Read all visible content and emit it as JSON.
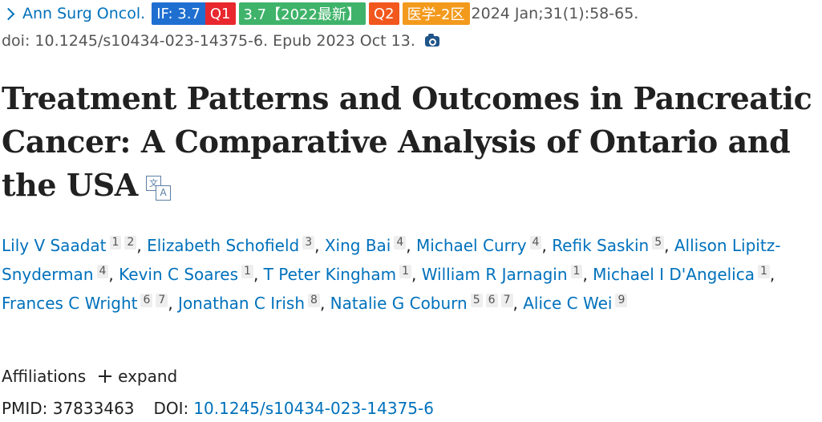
{
  "citation": {
    "journal": "Ann Surg Oncol.",
    "badges": {
      "impact": "IF: 3.7",
      "quartile": "Q1",
      "impact_year": "3.7【2022最新】",
      "cas_quartile": "Q2",
      "cas_category": "医学-2区"
    },
    "date_volume": "2024 Jan;31(1):58-65.",
    "doi_epub": "doi: 10.1245/s10434-023-14375-6. Epub 2023 Oct 13."
  },
  "title_text": "Treatment Patterns and Outcomes in Pancreatic Cancer: A Comparative Analysis of Ontario and the USA",
  "translate_glyphs": {
    "zh": "文",
    "en": "A"
  },
  "authors": [
    {
      "name": "Lily V Saadat",
      "affs": [
        "1",
        "2"
      ],
      "sep": ","
    },
    {
      "name": "Elizabeth Schofield",
      "affs": [
        "3"
      ],
      "sep": ","
    },
    {
      "name": "Xing Bai",
      "affs": [
        "4"
      ],
      "sep": ","
    },
    {
      "name": "Michael Curry",
      "affs": [
        "4"
      ],
      "sep": ","
    },
    {
      "name": "Refik Saskin",
      "affs": [
        "5"
      ],
      "sep": ","
    },
    {
      "name": "Allison Lipitz-Snyderman",
      "affs": [
        "4"
      ],
      "sep": ","
    },
    {
      "name": "Kevin C Soares",
      "affs": [
        "1"
      ],
      "sep": ","
    },
    {
      "name": "T Peter Kingham",
      "affs": [
        "1"
      ],
      "sep": ","
    },
    {
      "name": "William R Jarnagin",
      "affs": [
        "1"
      ],
      "sep": ","
    },
    {
      "name": "Michael I D'Angelica",
      "affs": [
        "1"
      ],
      "sep": ","
    },
    {
      "name": "Frances C Wright",
      "affs": [
        "6",
        "7"
      ],
      "sep": ","
    },
    {
      "name": "Jonathan C Irish",
      "affs": [
        "8"
      ],
      "sep": ","
    },
    {
      "name": "Natalie G Coburn",
      "affs": [
        "5",
        "6",
        "7"
      ],
      "sep": ","
    },
    {
      "name": "Alice C Wei",
      "affs": [
        "9"
      ],
      "sep": ""
    }
  ],
  "affiliations": {
    "label": "Affiliations",
    "expand_label": "expand"
  },
  "ids": {
    "pmid_label": "PMID:",
    "pmid": "37833463",
    "doi_label": "DOI:",
    "doi": "10.1245/s10434-023-14375-6"
  },
  "colors": {
    "link": "#0071bc",
    "if_badge": "#1f6fd1",
    "q1_badge": "#e8282e",
    "year_badge": "#3fb36a",
    "q2_badge": "#f2571d",
    "cas_badge": "#f39a1d"
  },
  "icons": [
    "chevron-right-icon",
    "camera-icon",
    "translate-icon",
    "plus-icon"
  ]
}
